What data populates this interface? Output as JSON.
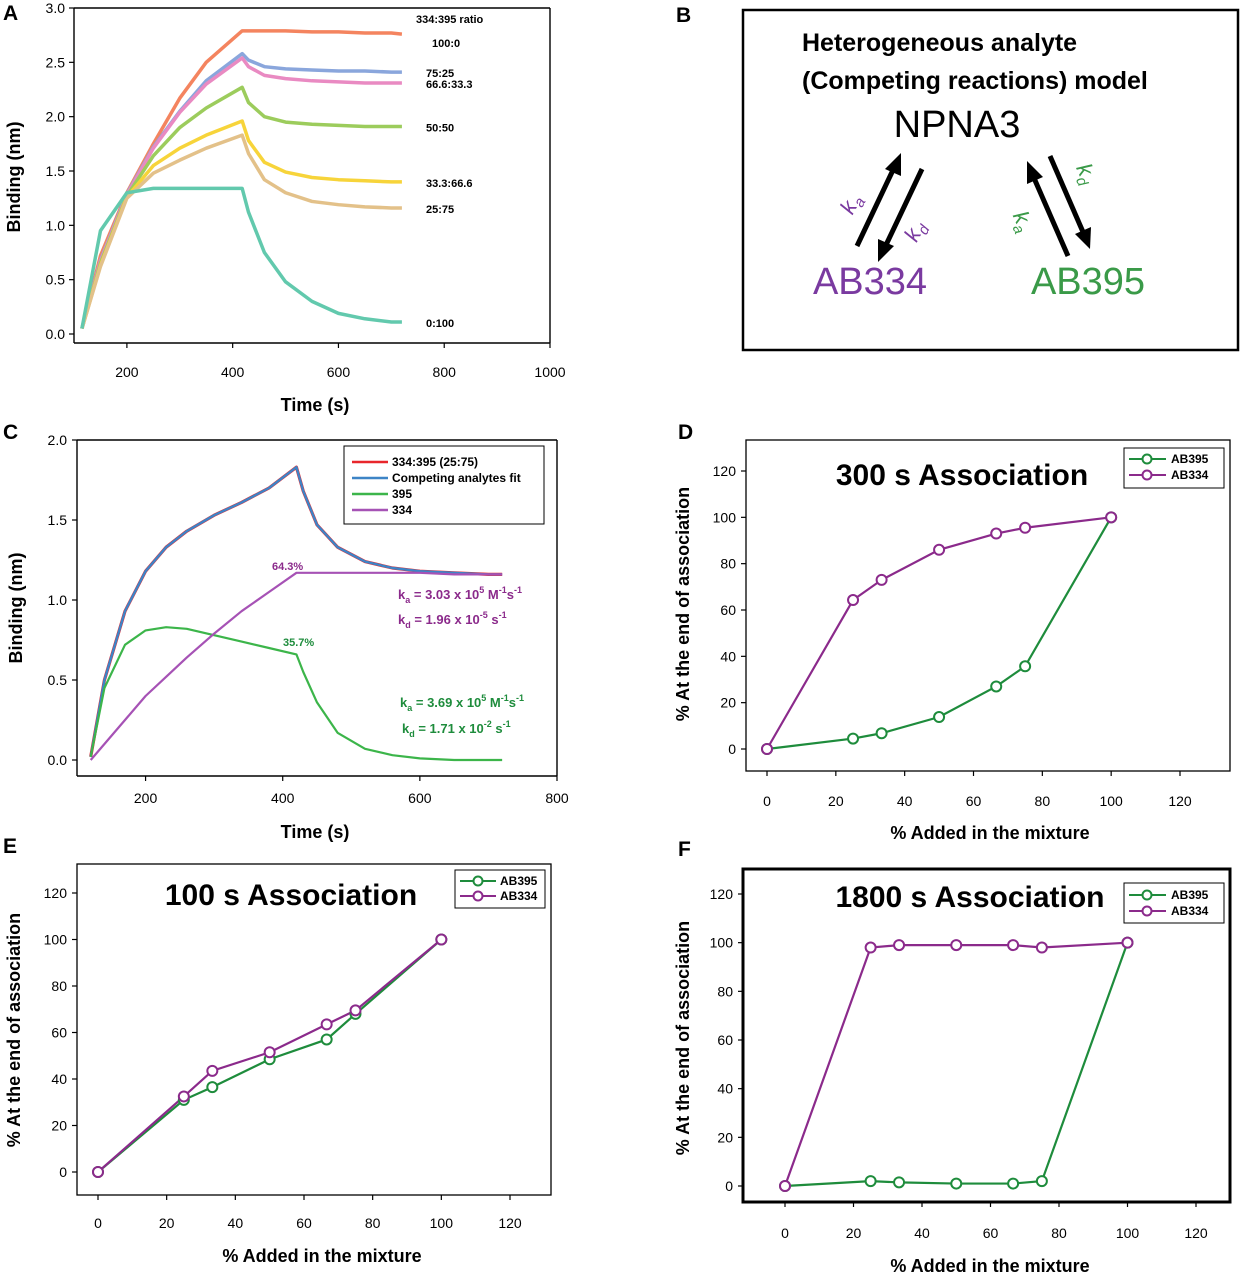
{
  "colors": {
    "purple": "#8b2a8b",
    "green": "#1e8c3c",
    "red": "#e8262b",
    "blue": "#3d84c6",
    "c395": "#3cb54a",
    "c334": "#a652b5",
    "ab334_text": "#7a3aa0",
    "ab395_text": "#3a9a48",
    "ratio_colors": [
      "#f4845f",
      "#8aa6dc",
      "#e98ac2",
      "#9ccc5c",
      "#f7d43a",
      "#e3c189",
      "#62c9ad"
    ]
  },
  "panel_a": {
    "letter": "A",
    "xlabel": "Time (s)",
    "ylabel": "Binding (nm)",
    "legend_title": "334:395 ratio",
    "ratio_labels": [
      "100:0",
      "75:25",
      "66.6:33.3",
      "50:50",
      "33.3:66.6",
      "25:75",
      "0:100"
    ],
    "x_ticks": [
      "200",
      "400",
      "600",
      "800",
      "1000"
    ],
    "y_ticks": [
      "0.0",
      "0.5",
      "1.0",
      "1.5",
      "2.0",
      "2.5",
      "3.0"
    ]
  },
  "panel_b": {
    "letter": "B",
    "title_line1": "Heterogeneous analyte",
    "title_line2": "(Competing reactions) model",
    "target": "NPNA3",
    "ab_left": "AB334",
    "ab_right": "AB395",
    "k_a": "ka",
    "k_d": "kd"
  },
  "panel_c": {
    "letter": "C",
    "xlabel": "Time (s)",
    "ylabel": "Binding (nm)",
    "x_ticks": [
      "200",
      "400",
      "600",
      "800"
    ],
    "y_ticks": [
      "0.0",
      "0.5",
      "1.0",
      "1.5",
      "2.0"
    ],
    "legend": [
      "334:395 (25:75)",
      "Competing analytes fit",
      "395",
      "334"
    ],
    "pct_334": "64.3%",
    "pct_395": "35.7%",
    "ka334": {
      "sym": "k",
      "sub": "a",
      "mid": " = 3.03 x 10",
      "exp": "5",
      "unit": " M",
      "unit_exp": "-1",
      "s": "s",
      "s_exp": "-1"
    },
    "kd334": {
      "sym": "k",
      "sub": "d",
      "mid": " = 1.96 x 10",
      "exp": "-5",
      "s": " s",
      "s_exp": "-1"
    },
    "ka395": {
      "sym": "k",
      "sub": "a",
      "mid": " = 3.69 x 10",
      "exp": "5",
      "unit": " M",
      "unit_exp": "-1",
      "s": "s",
      "s_exp": "-1"
    },
    "kd395": {
      "sym": "k",
      "sub": "d",
      "mid": " = 1.71 x 10",
      "exp": "-2",
      "s": " s",
      "s_exp": "-1"
    }
  },
  "panel_d": {
    "letter": "D",
    "title": "300 s Association",
    "xlabel": "% Added in the mixture",
    "ylabel": "% At the end of association",
    "legend": [
      "AB395",
      "AB334"
    ],
    "x_ticks": [
      "0",
      "20",
      "40",
      "60",
      "80",
      "100",
      "120"
    ],
    "y_ticks": [
      "0",
      "20",
      "40",
      "60",
      "80",
      "100",
      "120"
    ]
  },
  "panel_e": {
    "letter": "E",
    "title": "100 s Association",
    "xlabel": "% Added in the mixture",
    "ylabel": "% At the end of association",
    "legend": [
      "AB395",
      "AB334"
    ],
    "x_ticks": [
      "0",
      "20",
      "40",
      "60",
      "80",
      "100",
      "120"
    ],
    "y_ticks": [
      "0",
      "20",
      "40",
      "60",
      "80",
      "100",
      "120"
    ]
  },
  "panel_f": {
    "letter": "F",
    "title": "1800 s Association",
    "xlabel": "% Added in the mixture",
    "ylabel": "% At the end of association",
    "legend": [
      "AB395",
      "AB334"
    ],
    "x_ticks": [
      "0",
      "20",
      "40",
      "60",
      "80",
      "100",
      "120"
    ],
    "y_ticks": [
      "0",
      "20",
      "40",
      "60",
      "80",
      "100",
      "120"
    ]
  },
  "chart_data": [
    {
      "panel": "A",
      "type": "line",
      "title": "",
      "xlabel": "Time (s)",
      "ylabel": "Binding (nm)",
      "xlim": [
        100,
        1000
      ],
      "ylim": [
        0,
        3.0
      ],
      "legend_title": "334:395 ratio",
      "x": [
        115,
        150,
        200,
        250,
        300,
        350,
        418,
        430,
        460,
        500,
        550,
        600,
        650,
        700,
        720
      ],
      "series": [
        {
          "name": "100:0",
          "values": [
            0.05,
            0.72,
            1.3,
            1.75,
            2.17,
            2.5,
            2.79,
            2.79,
            2.79,
            2.79,
            2.78,
            2.78,
            2.77,
            2.77,
            2.76
          ]
        },
        {
          "name": "75:25",
          "values": [
            0.05,
            0.68,
            1.29,
            1.72,
            2.05,
            2.33,
            2.58,
            2.52,
            2.46,
            2.44,
            2.43,
            2.42,
            2.42,
            2.41,
            2.41
          ]
        },
        {
          "name": "66.6:33.3",
          "values": [
            0.05,
            0.67,
            1.28,
            1.71,
            2.04,
            2.3,
            2.54,
            2.46,
            2.38,
            2.35,
            2.33,
            2.32,
            2.31,
            2.31,
            2.31
          ]
        },
        {
          "name": "50:50",
          "values": [
            0.05,
            0.65,
            1.27,
            1.64,
            1.9,
            2.08,
            2.27,
            2.13,
            2.0,
            1.95,
            1.93,
            1.92,
            1.91,
            1.91,
            1.91
          ]
        },
        {
          "name": "33.3:66.6",
          "values": [
            0.05,
            0.63,
            1.26,
            1.55,
            1.71,
            1.83,
            1.96,
            1.78,
            1.58,
            1.49,
            1.44,
            1.42,
            1.41,
            1.4,
            1.4
          ]
        },
        {
          "name": "25:75",
          "values": [
            0.05,
            0.62,
            1.25,
            1.48,
            1.6,
            1.71,
            1.83,
            1.66,
            1.42,
            1.3,
            1.22,
            1.19,
            1.17,
            1.16,
            1.16
          ]
        },
        {
          "name": "0:100",
          "values": [
            0.05,
            0.95,
            1.3,
            1.34,
            1.34,
            1.34,
            1.34,
            1.12,
            0.75,
            0.48,
            0.3,
            0.19,
            0.14,
            0.11,
            0.11
          ]
        }
      ]
    },
    {
      "panel": "C",
      "type": "line",
      "title": "",
      "xlabel": "Time (s)",
      "ylabel": "Binding (nm)",
      "xlim": [
        100,
        800
      ],
      "ylim": [
        0,
        2.0
      ],
      "x": [
        120,
        140,
        170,
        200,
        230,
        260,
        300,
        340,
        380,
        420,
        430,
        450,
        480,
        520,
        560,
        600,
        650,
        700,
        720
      ],
      "series": [
        {
          "name": "334:395 (25:75)",
          "values": [
            0.02,
            0.5,
            0.93,
            1.18,
            1.33,
            1.43,
            1.53,
            1.61,
            1.7,
            1.83,
            1.68,
            1.47,
            1.33,
            1.24,
            1.2,
            1.18,
            1.17,
            1.16,
            1.16
          ]
        },
        {
          "name": "Competing analytes fit",
          "values": [
            0.02,
            0.5,
            0.93,
            1.18,
            1.33,
            1.43,
            1.53,
            1.61,
            1.7,
            1.83,
            1.68,
            1.47,
            1.33,
            1.24,
            1.2,
            1.18,
            1.17,
            1.16,
            1.16
          ]
        },
        {
          "name": "395",
          "values": [
            0.02,
            0.45,
            0.72,
            0.81,
            0.83,
            0.82,
            0.78,
            0.74,
            0.7,
            0.66,
            0.55,
            0.36,
            0.17,
            0.07,
            0.03,
            0.01,
            0.0,
            0.0,
            0.0
          ]
        },
        {
          "name": "334",
          "values": [
            0.0,
            0.1,
            0.25,
            0.4,
            0.52,
            0.64,
            0.79,
            0.93,
            1.05,
            1.17,
            1.17,
            1.17,
            1.17,
            1.17,
            1.17,
            1.17,
            1.16,
            1.16,
            1.16
          ]
        }
      ],
      "annotations": [
        "64.3%",
        "35.7%",
        "ka = 3.03 x 10^5 M^-1 s^-1",
        "kd = 1.96 x 10^-5 s^-1",
        "ka = 3.69 x 10^5 M^-1 s^-1",
        "kd = 1.71 x 10^-2 s^-1"
      ]
    },
    {
      "panel": "D",
      "type": "line",
      "title": "300 s Association",
      "xlabel": "% Added in the mixture",
      "ylabel": "% At the end of association",
      "xlim": [
        -10,
        130
      ],
      "ylim": [
        -10,
        130
      ],
      "x": [
        0,
        25,
        33.3,
        50,
        66.6,
        75,
        100
      ],
      "series": [
        {
          "name": "AB395",
          "values": [
            0,
            4.5,
            6.8,
            13.8,
            27,
            35.7,
            100
          ]
        },
        {
          "name": "AB334",
          "values": [
            0,
            64.3,
            73,
            86,
            93,
            95.5,
            100
          ]
        }
      ]
    },
    {
      "panel": "E",
      "type": "line",
      "title": "100 s Association",
      "xlabel": "% Added in the mixture",
      "ylabel": "% At the end of association",
      "xlim": [
        -10,
        130
      ],
      "ylim": [
        -10,
        130
      ],
      "x": [
        0,
        25,
        33.3,
        50,
        66.6,
        75,
        100
      ],
      "series": [
        {
          "name": "AB395",
          "values": [
            0,
            31,
            36.5,
            48.5,
            57,
            68,
            100
          ]
        },
        {
          "name": "AB334",
          "values": [
            0,
            32.5,
            43.5,
            51.5,
            63.5,
            69.5,
            100
          ]
        }
      ]
    },
    {
      "panel": "F",
      "type": "line",
      "title": "1800 s Association",
      "xlabel": "% Added in the mixture",
      "ylabel": "% At the end of association",
      "xlim": [
        -10,
        130
      ],
      "ylim": [
        -10,
        130
      ],
      "x": [
        0,
        25,
        33.3,
        50,
        66.6,
        75,
        100
      ],
      "series": [
        {
          "name": "AB395",
          "values": [
            0,
            2,
            1.5,
            1,
            1,
            2,
            100
          ]
        },
        {
          "name": "AB334",
          "values": [
            0,
            98,
            99,
            99,
            99,
            98,
            100
          ]
        }
      ]
    }
  ]
}
